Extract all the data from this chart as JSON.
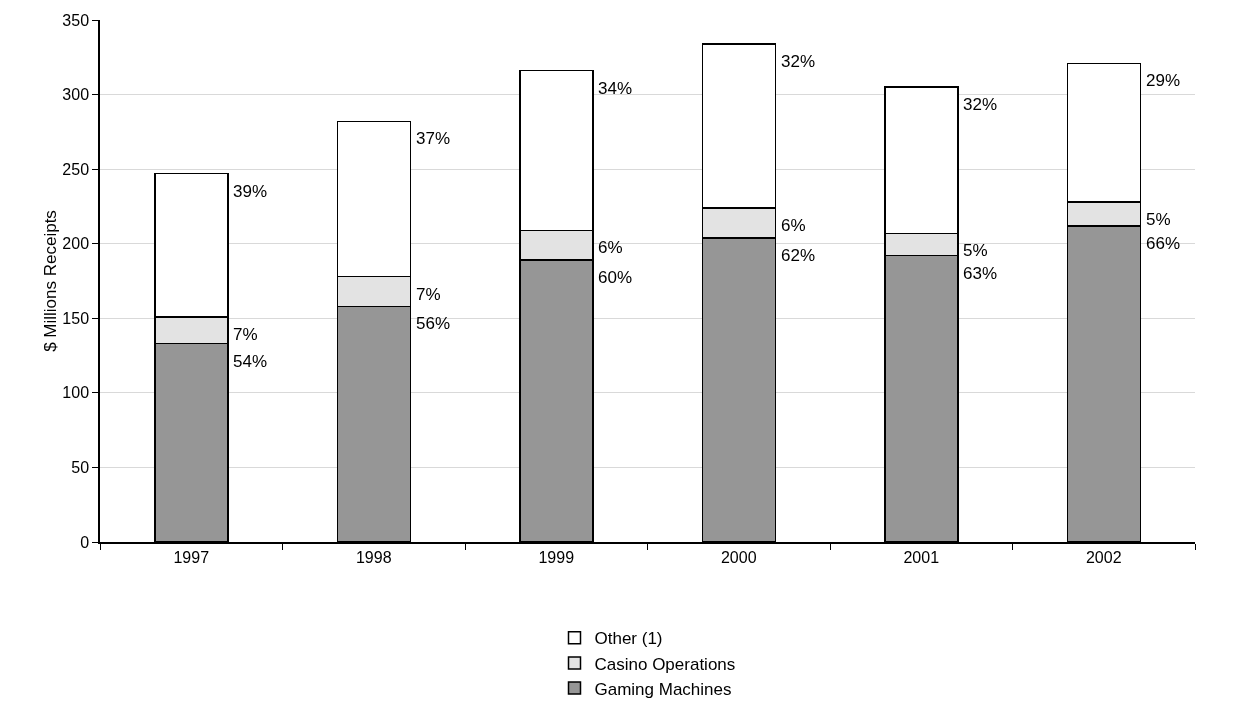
{
  "chart_data": {
    "type": "bar",
    "stacked": true,
    "ylabel": "$ Millions Receipts",
    "categories": [
      "1997",
      "1998",
      "1999",
      "2000",
      "2001",
      "2002"
    ],
    "series": [
      {
        "name": "Gaming Machines",
        "color": "#969696",
        "values": [
          133,
          158,
          189,
          204,
          192,
          212
        ]
      },
      {
        "name": "Casino Operations",
        "color": "#e3e3e3",
        "values": [
          18,
          20,
          20,
          20,
          15,
          16
        ]
      },
      {
        "name": "Other (1)",
        "color": "#ffffff",
        "values": [
          96,
          104,
          107,
          110,
          98,
          93
        ]
      }
    ],
    "annotations": [
      {
        "text": "54%",
        "x": "1997",
        "y": 133
      },
      {
        "text": "7%",
        "x": "1997",
        "y": 151
      },
      {
        "text": "39%",
        "x": "1997",
        "y": 247
      },
      {
        "text": "56%",
        "x": "1998",
        "y": 158
      },
      {
        "text": "7%",
        "x": "1998",
        "y": 178
      },
      {
        "text": "37%",
        "x": "1998",
        "y": 282
      },
      {
        "text": "60%",
        "x": "1999",
        "y": 189
      },
      {
        "text": "6%",
        "x": "1999",
        "y": 209
      },
      {
        "text": "34%",
        "x": "1999",
        "y": 316
      },
      {
        "text": "62%",
        "x": "2000",
        "y": 204
      },
      {
        "text": "6%",
        "x": "2000",
        "y": 224
      },
      {
        "text": "32%",
        "x": "2000",
        "y": 334
      },
      {
        "text": "63%",
        "x": "2001",
        "y": 192
      },
      {
        "text": "5%",
        "x": "2001",
        "y": 207
      },
      {
        "text": "32%",
        "x": "2001",
        "y": 305
      },
      {
        "text": "66%",
        "x": "2002",
        "y": 212
      },
      {
        "text": "5%",
        "x": "2002",
        "y": 228
      },
      {
        "text": "29%",
        "x": "2002",
        "y": 321
      }
    ],
    "ylim": [
      0,
      350
    ],
    "yticks": [
      0,
      50,
      100,
      150,
      200,
      250,
      300,
      350
    ],
    "grid": "y",
    "legend": "bottom"
  }
}
